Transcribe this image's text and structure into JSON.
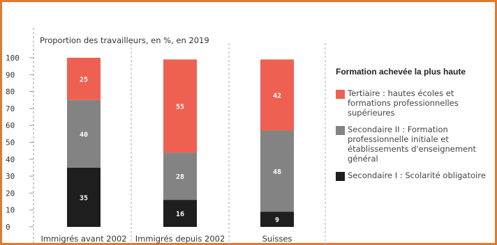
{
  "chart_data": {
    "type": "bar",
    "stacked": true,
    "title": "Proportion des travailleurs, en %, en 2019",
    "xlabel": "",
    "ylabel": "",
    "ylim": [
      0,
      100
    ],
    "yticks": [
      0,
      10,
      20,
      30,
      40,
      50,
      60,
      70,
      80,
      90,
      100
    ],
    "categories": [
      "Immigrés avant 2002",
      "Immigrés depuis 2002",
      "Suisses"
    ],
    "series": [
      {
        "name": "Secondaire I : Scolarité obligatoire",
        "color": "#1e1e1e",
        "values": [
          35,
          16,
          9
        ]
      },
      {
        "name": "Secondaire II : Formation professionnelle initiale et établissements d'enseignement général",
        "color": "#838383",
        "values": [
          40,
          28,
          48
        ]
      },
      {
        "name": "Tertiaire : hautes écoles et formations professionnelles supérieures",
        "color": "#ee6152",
        "values": [
          25,
          55,
          42
        ]
      }
    ],
    "legend_title": "Formation achevée la plus haute",
    "legend_position": "right"
  },
  "colors": {
    "frame": "#e07a2f",
    "axis": "#999999",
    "grid": "#aaaaaa",
    "bar_label": "#ffffff",
    "text": "#333333"
  }
}
